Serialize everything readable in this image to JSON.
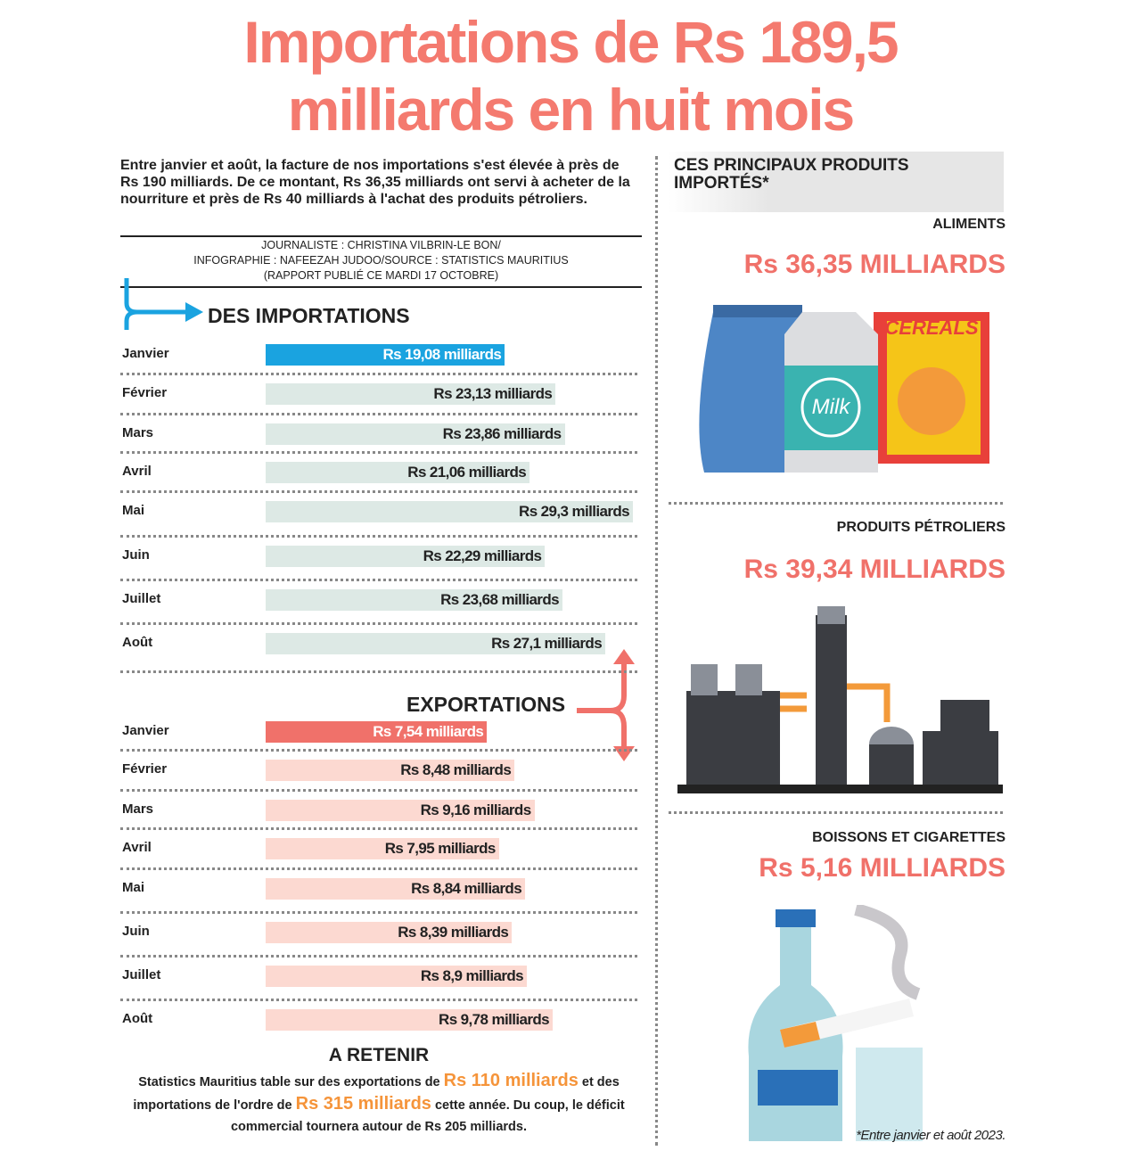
{
  "header": {
    "title_line1": "Importations de Rs 189,5",
    "title_line2": "milliards en huit mois"
  },
  "intro": "Entre janvier et août, la facture de nos importations s'est élevée à près de Rs 190 milliards. De ce montant, Rs 36,35 milliards ont servi à acheter de la nourriture et près de Rs 40 milliards à l'achat des produits pétroliers.",
  "credits": [
    "JOURNALISTE : CHRISTINA VILBRIN-LE BON/",
    "INFOGRAPHIE : NAFEEZAH JUDOO/SOURCE : STATISTICS MAURITIUS",
    "(RAPPORT PUBLIÉ CE MARDI 17 OCTOBRE)"
  ],
  "chart_data": [
    {
      "type": "bar",
      "orientation": "horizontal",
      "title": "DES IMPORTATIONS",
      "categories": [
        "Janvier",
        "Février",
        "Mars",
        "Avril",
        "Mai",
        "Juin",
        "Juillet",
        "Août"
      ],
      "values": [
        19.08,
        23.13,
        23.86,
        21.06,
        29.3,
        22.29,
        23.68,
        27.1
      ],
      "value_labels": [
        "Rs 19,08 milliards",
        "Rs 23,13 milliards",
        "Rs 23,86 milliards",
        "Rs 21,06 milliards",
        "Rs 29,3 milliards",
        "Rs 22,29 milliards",
        "Rs 23,68 milliards",
        "Rs 27,1 milliards"
      ],
      "colors": [
        "#1aa3e0",
        "#dde9e5",
        "#dde9e5",
        "#dde9e5",
        "#dde9e5",
        "#dde9e5",
        "#dde9e5",
        "#dde9e5"
      ],
      "label_colors": [
        "#ffffff",
        "#222222",
        "#222222",
        "#222222",
        "#222222",
        "#222222",
        "#222222",
        "#222222"
      ]
    },
    {
      "type": "bar",
      "orientation": "horizontal",
      "title": "EXPORTATIONS",
      "categories": [
        "Janvier",
        "Février",
        "Mars",
        "Avril",
        "Mai",
        "Juin",
        "Juillet",
        "Août"
      ],
      "values": [
        7.54,
        8.48,
        9.16,
        7.95,
        8.84,
        8.39,
        8.9,
        9.78
      ],
      "value_labels": [
        "Rs 7,54 milliards",
        "Rs 8,48 milliards",
        "Rs 9,16 milliards",
        "Rs 7,95 milliards",
        "Rs 8,84 milliards",
        "Rs 8,39 milliards",
        "Rs 8,9 milliards",
        "Rs 9,78 milliards"
      ],
      "colors": [
        "#f0716a",
        "#fcd9d1",
        "#fcd9d1",
        "#fcd9d1",
        "#fcd9d1",
        "#fcd9d1",
        "#fcd9d1",
        "#fcd9d1"
      ],
      "label_colors": [
        "#ffffff",
        "#222222",
        "#222222",
        "#222222",
        "#222222",
        "#222222",
        "#222222",
        "#222222"
      ]
    }
  ],
  "retenir": {
    "title": "A RETENIR",
    "parts": [
      "Statistics Mauritius table sur des exportations de ",
      "Rs 110 milliards",
      " et des importations de l'ordre de ",
      "Rs 315 milliards",
      " cette année. Du coup, le déficit commercial tournera autour de Rs 205 milliards."
    ]
  },
  "products": {
    "title": "CES PRINCIPAUX PRODUITS IMPORTÉS*",
    "items": [
      {
        "name": "ALIMENTS",
        "value": 36.35,
        "value_label": "Rs 36,35 MILLIARDS"
      },
      {
        "name": "PRODUITS PÉTROLIERS",
        "value": 39.34,
        "value_label": "Rs 39,34 MILLIARDS"
      },
      {
        "name": "BOISSONS ET CIGARETTES",
        "value": 5.16,
        "value_label": "Rs 5,16 MILLIARDS"
      }
    ],
    "illustration_texts": [
      "CEREALS",
      "Milk"
    ],
    "footnote": "*Entre janvier et août 2023."
  }
}
